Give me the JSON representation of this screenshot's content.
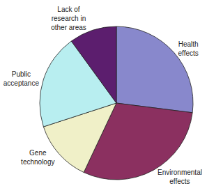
{
  "chart_data": {
    "type": "pie",
    "categories": [
      "Health\neffects",
      "Environmental\neffects",
      "Gene\ntechnology",
      "Public\nacceptance",
      "Lack of\nresearch in\nother areas"
    ],
    "values": [
      27,
      30,
      13,
      20,
      10
    ],
    "colors": [
      "#8888cc",
      "#8b3060",
      "#f0f0c8",
      "#b8eef0",
      "#5c1e6e"
    ]
  }
}
